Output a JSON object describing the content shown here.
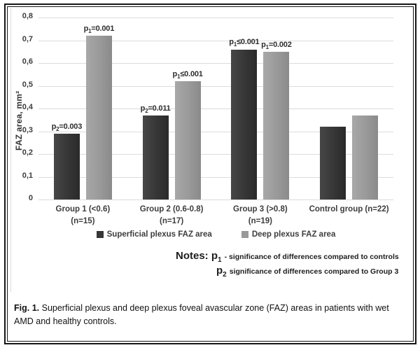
{
  "chart_data": {
    "type": "bar",
    "title": "",
    "ylabel": "FAZ area, mm²",
    "ylim": [
      0,
      0.8
    ],
    "ytick_step": 0.1,
    "ytick_labels": [
      "0",
      "0,1",
      "0,2",
      "0,3",
      "0,4",
      "0,5",
      "0,6",
      "0,7",
      "0,8"
    ],
    "decimal_separator": ",",
    "grid": true,
    "legend_position": "bottom",
    "gridline_color": "#dcdcdc",
    "categories": [
      {
        "line1": "Group 1 (<0.6)",
        "line2": "(n=15)"
      },
      {
        "line1": "Group 2 (0.6-0.8)",
        "line2": "(n=17)"
      },
      {
        "line1": "Group 3 (>0.8)",
        "line2": "(n=19)"
      },
      {
        "line1": "Control group (n=22)",
        "line2": ""
      }
    ],
    "series": [
      {
        "name": "Superficial plexus FAZ area",
        "color": "#363636",
        "color_light": "#474747",
        "color_dark": "#2a2a2a",
        "values": [
          0.29,
          0.37,
          0.66,
          0.32
        ],
        "annotations": [
          {
            "symbol": "p",
            "sub": "2",
            "rest": "=0.003"
          },
          {
            "symbol": "p",
            "sub": "2",
            "rest": "=0.011"
          },
          {
            "symbol": "p",
            "sub": "1",
            "rest": "≤0.001"
          },
          null
        ]
      },
      {
        "name": "Deep plexus FAZ area",
        "color": "#999999",
        "color_light": "#a8a8a8",
        "color_dark": "#8a8a8a",
        "values": [
          0.72,
          0.52,
          0.65,
          0.37
        ],
        "annotations": [
          {
            "symbol": "p",
            "sub": "1",
            "rest": "=0.001"
          },
          {
            "symbol": "p",
            "sub": "1",
            "rest": "≤0.001"
          },
          {
            "symbol": "p",
            "sub": "1",
            "rest": "=0.002"
          },
          null
        ]
      }
    ]
  },
  "notes": {
    "label": "Notes:",
    "items": [
      {
        "symbol": "p",
        "sub": "1",
        "text": "- significance of differences compared to controls"
      },
      {
        "symbol": "p",
        "sub": "2",
        "text": "significance of differences compared to  Group 3"
      }
    ]
  },
  "caption": {
    "label": "Fig. 1.",
    "text": "Superficial plexus and deep plexus foveal avascular zone (FAZ) areas in patients with wet AMD and healthy controls."
  }
}
